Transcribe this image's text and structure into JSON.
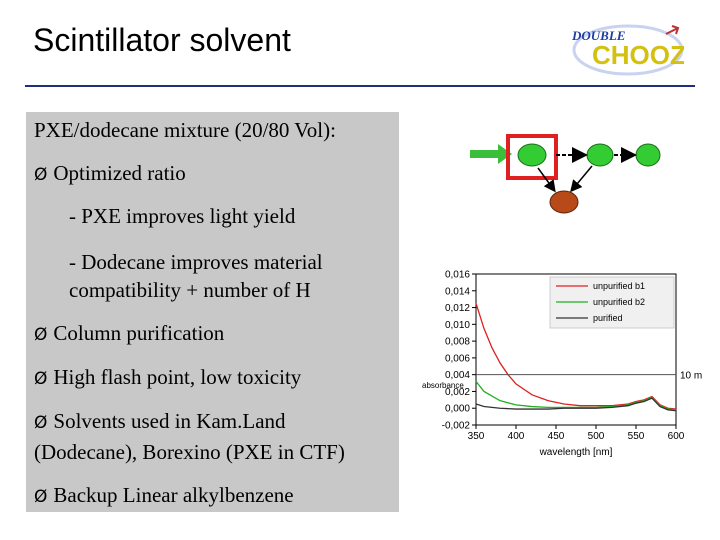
{
  "slide": {
    "title": "Scintillator solvent"
  },
  "logo": {
    "text_top": "DOUBLE",
    "text_bottom": "CHOOZ",
    "colors": {
      "primary": "#1f3ea0",
      "accent": "#d4c010",
      "mark": "#c03030"
    }
  },
  "textbox": {
    "lines": [
      {
        "bullet": false,
        "text": "PXE/dodecane mixture (20/80 Vol):"
      },
      {
        "bullet": true,
        "text": "Optimized ratio"
      },
      {
        "bullet": false,
        "text": "- PXE improves light yield"
      },
      {
        "bullet": false,
        "text": "- Dodecane improves material"
      },
      {
        "bullet": false,
        "text": "compatibility + number of H"
      },
      {
        "bullet": true,
        "text": "Column purification"
      },
      {
        "bullet": true,
        "text": "High flash point, low toxicity"
      },
      {
        "bullet": true,
        "text": "Solvents used in Kam.Land"
      },
      {
        "bullet": false,
        "text": "(Dodecane), Borexino (PXE in CTF)"
      },
      {
        "bullet": true,
        "text": "Backup Linear alkylbenzene"
      }
    ],
    "bullet_symbol": "Ø"
  },
  "diagram": {
    "colors": {
      "input_arrow": "#3bbf3b",
      "node": "#33cc33",
      "highlight_box": "#e02020",
      "output_node": "#b84a1a"
    }
  },
  "chart_data": {
    "type": "line",
    "xlabel": "wavelength [nm]",
    "ylabel": "absorbance",
    "xlim": [
      350,
      600
    ],
    "ylim": [
      -0.002,
      0.016
    ],
    "x_ticks": [
      "350",
      "400",
      "450",
      "500",
      "550",
      "600"
    ],
    "y_ticks": [
      "0,016",
      "0,014",
      "0,012",
      "0,010",
      "0,008",
      "0,006",
      "0,004",
      "0,002",
      "0,000",
      "-0,002"
    ],
    "reference_line": {
      "y": 0.004,
      "label": "10 m"
    },
    "legend_position": "top-right",
    "series": [
      {
        "name": "unpurified b1",
        "color": "#e02020",
        "x": [
          350,
          360,
          370,
          380,
          390,
          400,
          420,
          440,
          460,
          480,
          500,
          520,
          540,
          550,
          560,
          570,
          580,
          590,
          600
        ],
        "y": [
          0.0125,
          0.0095,
          0.0072,
          0.0054,
          0.004,
          0.0029,
          0.0016,
          0.0009,
          0.0005,
          0.0003,
          0.0003,
          0.0003,
          0.0005,
          0.0008,
          0.001,
          0.0014,
          0.0004,
          0.0,
          -0.0001
        ]
      },
      {
        "name": "unpurified b2",
        "color": "#20b020",
        "x": [
          350,
          360,
          380,
          400,
          420,
          440,
          460,
          480,
          500,
          520,
          540,
          550,
          560,
          570,
          580,
          590,
          600
        ],
        "y": [
          0.0032,
          0.002,
          0.0009,
          0.0004,
          0.0002,
          0.0001,
          0.0001,
          0.0001,
          0.0001,
          0.0002,
          0.0004,
          0.0007,
          0.0009,
          0.0013,
          0.0003,
          -0.0001,
          -0.0002
        ]
      },
      {
        "name": "purified",
        "color": "#333333",
        "x": [
          350,
          360,
          380,
          400,
          420,
          440,
          460,
          480,
          500,
          520,
          540,
          550,
          560,
          570,
          580,
          590,
          600
        ],
        "y": [
          0.0005,
          0.0002,
          0.0,
          -0.0001,
          -0.0001,
          -0.0001,
          0.0,
          0.0,
          0.0,
          0.0001,
          0.0003,
          0.0006,
          0.0008,
          0.0012,
          0.0002,
          -0.0002,
          -0.0003
        ]
      }
    ]
  }
}
